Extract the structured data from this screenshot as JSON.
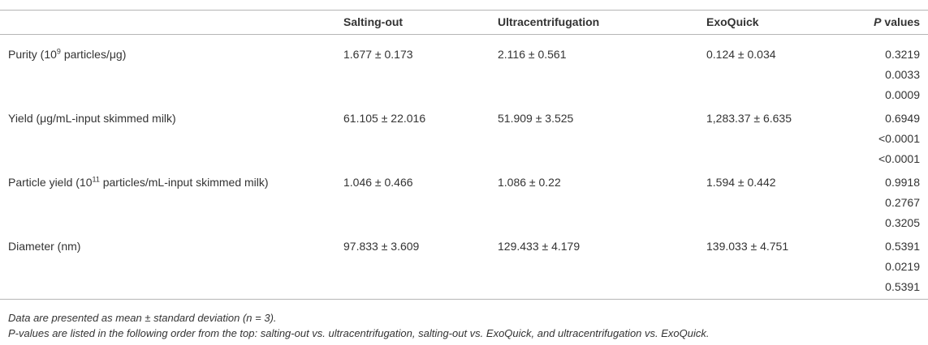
{
  "table": {
    "header": {
      "columns": [
        "Salting-out",
        "Ultracentrifugation",
        "ExoQuick"
      ],
      "p_header": {
        "italic": "P",
        "text": "values"
      }
    },
    "rows": [
      {
        "label": {
          "pre": "Purity (10",
          "sup": "9",
          "post": " particles/μg)"
        },
        "values": [
          "1.677 ± 0.173",
          "2.116 ± 0.561",
          "0.124 ± 0.034"
        ],
        "p_values": [
          "0.3219",
          "0.0033",
          "0.0009"
        ]
      },
      {
        "label": {
          "pre": "Yield (μg/mL-input skimmed milk)"
        },
        "values": [
          "61.105 ± 22.016",
          "51.909 ± 3.525",
          "1,283.37 ± 6.635"
        ],
        "p_values": [
          "0.6949",
          "<0.0001",
          "<0.0001"
        ]
      },
      {
        "label": {
          "pre": "Particle yield (10",
          "sup": "11",
          "post": " particles/mL-input skimmed milk)"
        },
        "values": [
          "1.046 ± 0.466",
          "1.086 ± 0.22",
          "1.594 ± 0.442"
        ],
        "p_values": [
          "0.9918",
          "0.2767",
          "0.3205"
        ]
      },
      {
        "label": {
          "pre": "Diameter (nm)"
        },
        "values": [
          "97.833 ± 3.609",
          "129.433 ± 4.179",
          "139.033 ± 4.751"
        ],
        "p_values": [
          "0.5391",
          "0.0219",
          "0.5391"
        ]
      }
    ],
    "footnotes": [
      "Data are presented as mean ± standard deviation (n = 3).",
      "P-values are listed in the following order from the top: salting-out vs. ultracentrifugation, salting-out vs. ExoQuick, and ultracentrifugation vs. ExoQuick."
    ]
  }
}
